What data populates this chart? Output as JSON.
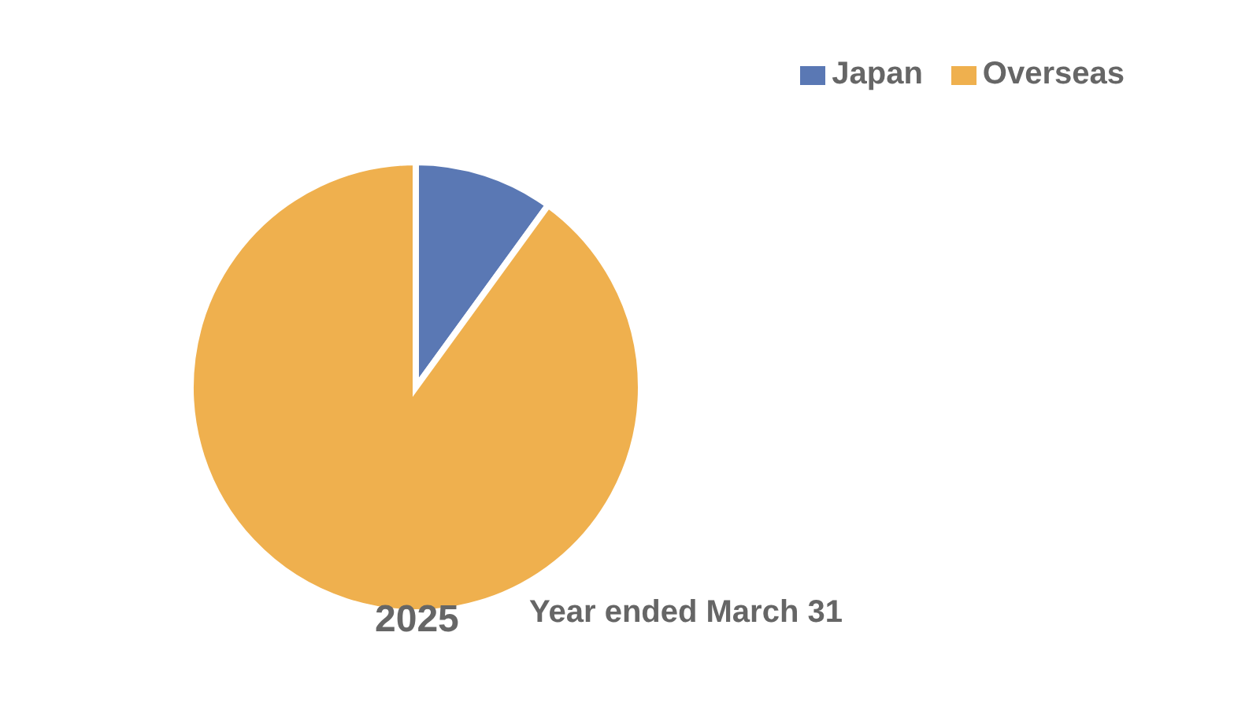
{
  "chart_data": {
    "type": "pie",
    "categories": [
      "Japan",
      "Overseas"
    ],
    "values": [
      10,
      90
    ],
    "colors": [
      "#5a78b4",
      "#efb04e"
    ],
    "legend": "top right",
    "annotations": [
      "2025",
      "Year ended March 31"
    ]
  }
}
